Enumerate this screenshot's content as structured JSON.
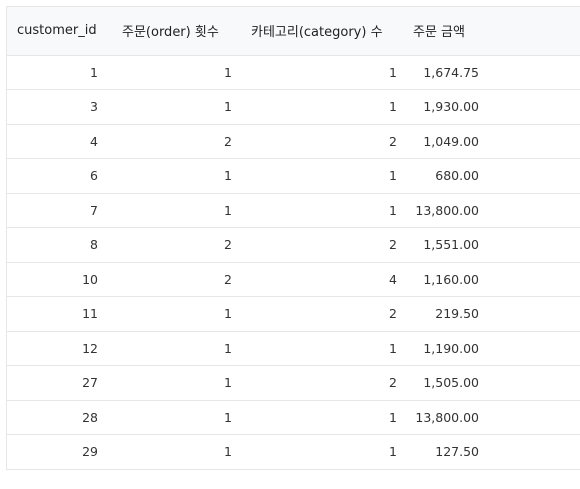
{
  "columns": [
    "customer_id",
    "주문(order) 횟수",
    "카테고리(category) 수",
    "주문 금액"
  ],
  "rows": [
    {
      "customer_id": "1",
      "orders": "1",
      "categories": "1",
      "amount": "1,674.75"
    },
    {
      "customer_id": "3",
      "orders": "1",
      "categories": "1",
      "amount": "1,930.00"
    },
    {
      "customer_id": "4",
      "orders": "2",
      "categories": "2",
      "amount": "1,049.00"
    },
    {
      "customer_id": "6",
      "orders": "1",
      "categories": "1",
      "amount": "680.00"
    },
    {
      "customer_id": "7",
      "orders": "1",
      "categories": "1",
      "amount": "13,800.00"
    },
    {
      "customer_id": "8",
      "orders": "2",
      "categories": "2",
      "amount": "1,551.00"
    },
    {
      "customer_id": "10",
      "orders": "2",
      "categories": "4",
      "amount": "1,160.00"
    },
    {
      "customer_id": "11",
      "orders": "1",
      "categories": "2",
      "amount": "219.50"
    },
    {
      "customer_id": "12",
      "orders": "1",
      "categories": "1",
      "amount": "1,190.00"
    },
    {
      "customer_id": "27",
      "orders": "1",
      "categories": "2",
      "amount": "1,505.00"
    },
    {
      "customer_id": "28",
      "orders": "1",
      "categories": "1",
      "amount": "13,800.00"
    },
    {
      "customer_id": "29",
      "orders": "1",
      "categories": "1",
      "amount": "127.50"
    }
  ]
}
